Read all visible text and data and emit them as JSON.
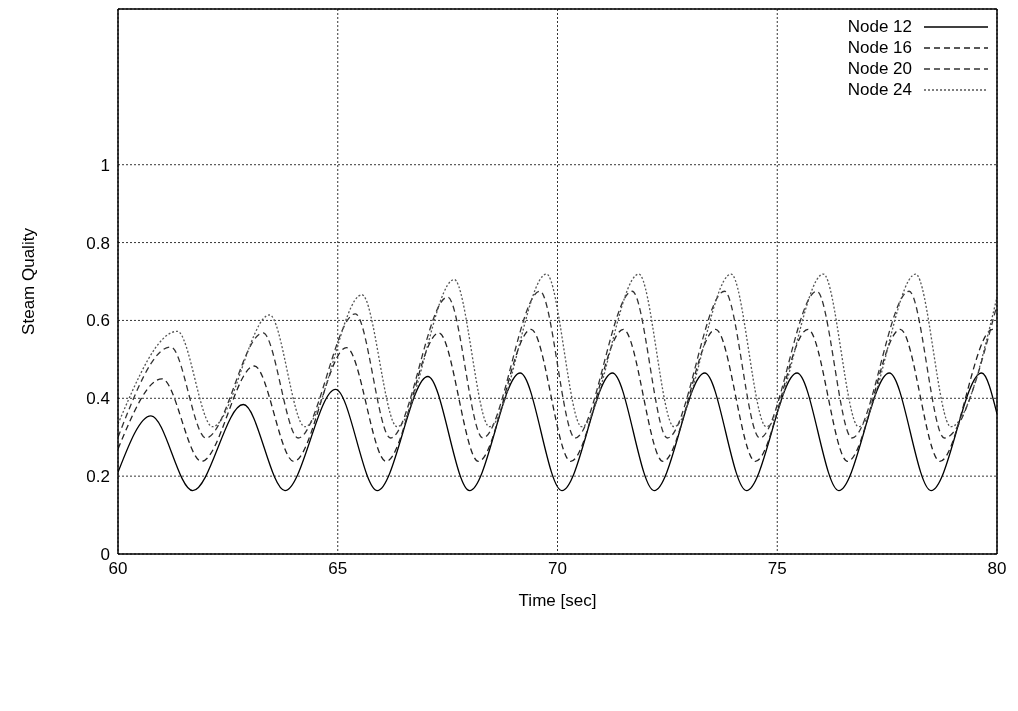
{
  "chart_data": {
    "type": "line",
    "xlabel": "Time [sec]",
    "ylabel": "Steam Quality",
    "xlim": [
      60,
      80
    ],
    "xticks": [
      60,
      65,
      70,
      75,
      80
    ],
    "ylim": [
      0,
      1.4
    ],
    "yticks": [
      0,
      0.2,
      0.4,
      0.6,
      0.8,
      1
    ],
    "grid": true,
    "legend": "top right",
    "marker": "none",
    "series": [
      {
        "name": "Node 12",
        "color": "#000000",
        "line_style": "solid",
        "x": [
          60,
          60.75,
          61.7,
          62.85,
          63.8,
          64.95,
          65.9,
          67.05,
          68.0,
          69.15,
          70.1,
          71.25,
          72.2,
          73.35,
          74.3,
          75.45,
          76.4,
          77.55,
          78.5,
          79.65,
          80
        ],
        "values": [
          0.21,
          0.355,
          0.163,
          0.384,
          0.163,
          0.423,
          0.163,
          0.456,
          0.163,
          0.465,
          0.163,
          0.465,
          0.163,
          0.465,
          0.163,
          0.465,
          0.163,
          0.465,
          0.163,
          0.465,
          0.36
        ]
      },
      {
        "name": "Node 16",
        "color": "#222222",
        "line_style": "dashed",
        "x": [
          60,
          61.0,
          61.9,
          63.1,
          64.0,
          65.2,
          66.1,
          67.3,
          68.2,
          69.4,
          70.3,
          71.5,
          72.4,
          73.6,
          74.5,
          75.7,
          76.6,
          77.8,
          78.7,
          79.9,
          80
        ],
        "values": [
          0.27,
          0.45,
          0.238,
          0.483,
          0.238,
          0.53,
          0.238,
          0.568,
          0.238,
          0.577,
          0.238,
          0.577,
          0.238,
          0.577,
          0.238,
          0.577,
          0.238,
          0.577,
          0.238,
          0.577,
          0.575
        ]
      },
      {
        "name": "Node 20",
        "color": "#333333",
        "line_style": "dashed",
        "x": [
          60,
          61.2,
          62.0,
          63.3,
          64.1,
          65.4,
          66.2,
          67.5,
          68.3,
          69.6,
          70.4,
          71.7,
          72.5,
          73.8,
          74.6,
          75.9,
          76.7,
          78.0,
          78.8,
          80
        ],
        "values": [
          0.3,
          0.532,
          0.298,
          0.568,
          0.298,
          0.617,
          0.298,
          0.66,
          0.298,
          0.675,
          0.298,
          0.675,
          0.298,
          0.675,
          0.298,
          0.675,
          0.298,
          0.675,
          0.298,
          0.64
        ]
      },
      {
        "name": "Node 24",
        "color": "#555555",
        "line_style": "dotted",
        "x": [
          60,
          61.35,
          62.15,
          63.45,
          64.25,
          65.55,
          66.35,
          67.65,
          68.45,
          69.75,
          70.55,
          71.85,
          72.65,
          73.95,
          74.75,
          76.05,
          76.85,
          78.15,
          78.95,
          80
        ],
        "values": [
          0.334,
          0.572,
          0.327,
          0.614,
          0.327,
          0.666,
          0.327,
          0.705,
          0.327,
          0.719,
          0.327,
          0.719,
          0.327,
          0.719,
          0.327,
          0.719,
          0.327,
          0.719,
          0.327,
          0.66
        ]
      }
    ]
  }
}
